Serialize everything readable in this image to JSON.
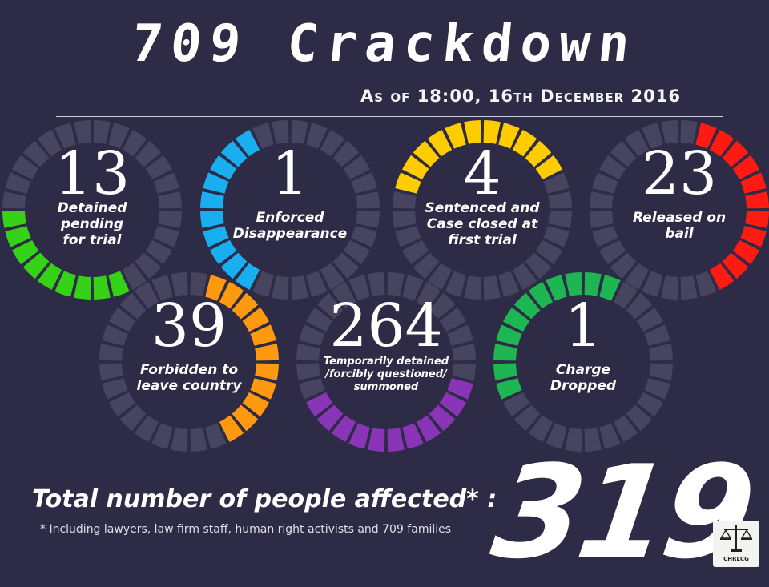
{
  "header": {
    "title": "709 Crackdown",
    "subtitle": "As of 18:00, 16th December 2016"
  },
  "colors": {
    "background": "#2d2b45",
    "segment_empty": "#46445f"
  },
  "stats": [
    {
      "value": "13",
      "label": [
        "Detained",
        "pending",
        "for trial"
      ],
      "color": "#35d217",
      "fill_fraction": 0.33,
      "arc": "bottom-left"
    },
    {
      "value": "1",
      "label": [
        "Enforced",
        "Disappearance"
      ],
      "color": "#19aef0",
      "fill_fraction": 0.35,
      "arc": "left"
    },
    {
      "value": "4",
      "label": [
        "Sentenced and",
        "Case closed at",
        "first trial"
      ],
      "color": "#ffcc00",
      "fill_fraction": 0.4,
      "arc": "top"
    },
    {
      "value": "23",
      "label": [
        "Released on",
        "bail"
      ],
      "color": "#ff1a12",
      "fill_fraction": 0.4,
      "arc": "right"
    },
    {
      "value": "39",
      "label": [
        "Forbidden to",
        "leave country"
      ],
      "color": "#ff9910",
      "fill_fraction": 0.4,
      "arc": "right"
    },
    {
      "value": "264",
      "label": [
        "Temporarily detained",
        "/forcibly questioned/",
        "summoned"
      ],
      "color": "#8a34b8",
      "fill_fraction": 0.4,
      "arc": "bottom"
    },
    {
      "value": "1",
      "label": [
        "Charge",
        "Dropped"
      ],
      "color": "#1eb553",
      "fill_fraction": 0.4,
      "arc": "top-left"
    }
  ],
  "footer": {
    "total_label": "Total number of people affected* :",
    "total_value": "319",
    "footnote": "* Including lawyers, law firm staff, human right activists and 709 families"
  },
  "logo": {
    "icon": "scales-of-justice-icon",
    "text": "CHRLCG"
  }
}
